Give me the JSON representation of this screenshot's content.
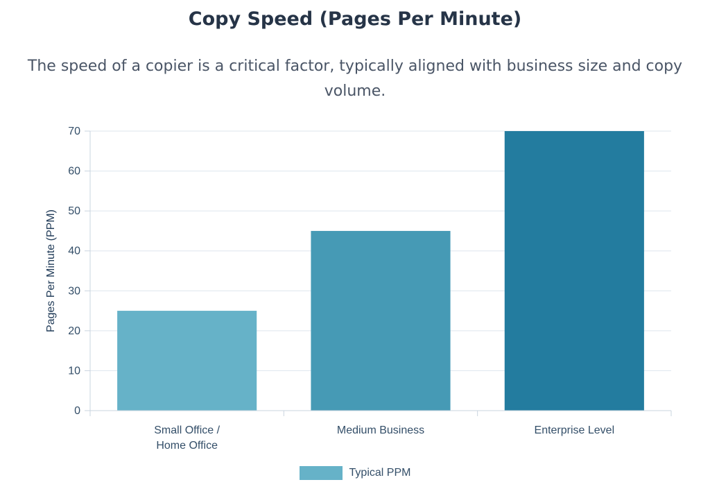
{
  "title": "Copy Speed (Pages Per Minute)",
  "subtitle": "The speed of a copier is a critical factor, typically aligned with business size and copy volume.",
  "legend": {
    "label": "Typical PPM",
    "color": "#66b2c8"
  },
  "chart_data": {
    "type": "bar",
    "categories": [
      [
        "Small Office /",
        "Home Office"
      ],
      [
        "Medium Business"
      ],
      [
        "Enterprise Level"
      ]
    ],
    "series": [
      {
        "name": "Typical PPM",
        "values": [
          25,
          45,
          70
        ],
        "colors": [
          "#66b2c8",
          "#469ab5",
          "#237c9f"
        ]
      }
    ],
    "xlabel": "",
    "ylabel": "Pages Per Minute (PPM)",
    "ylim": [
      0,
      70
    ],
    "yticks": [
      0,
      10,
      20,
      30,
      40,
      50,
      60,
      70
    ],
    "grid": true,
    "legend_position": "bottom"
  }
}
